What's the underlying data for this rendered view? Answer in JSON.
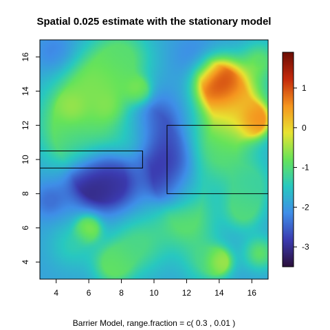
{
  "chart_data": {
    "type": "heatmap",
    "title": "Spatial 0.025 estimate with the stationary model",
    "caption": "Barrier Model, range.fraction = c( 0.3 ,  0.01 )",
    "xlabel": "",
    "ylabel": "",
    "xlim": [
      3,
      17
    ],
    "ylim": [
      3,
      17
    ],
    "x_ticks": [
      4,
      6,
      8,
      10,
      12,
      14,
      16
    ],
    "y_ticks": [
      4,
      6,
      8,
      10,
      12,
      14,
      16
    ],
    "colorbar": {
      "range": [
        -3.5,
        1.9
      ],
      "ticks": [
        1,
        0,
        -1,
        -2,
        -3
      ],
      "colors": [
        "#2b0f3a",
        "#3b3bb0",
        "#3f8ee8",
        "#28c8c0",
        "#66e35a",
        "#e8e332",
        "#f5951f",
        "#c42a0c",
        "#6b0d04"
      ]
    },
    "background_level": -1.9,
    "field_features": [
      {
        "x": 14.0,
        "y": 14.5,
        "value": 1.6,
        "spread": 0.9
      },
      {
        "x": 16.2,
        "y": 12.3,
        "value": 0.9,
        "spread": 0.6
      },
      {
        "x": 15.0,
        "y": 13.2,
        "value": 0.2,
        "spread": 1.3
      },
      {
        "x": 6.2,
        "y": 8.9,
        "value": -3.3,
        "spread": 1.0
      },
      {
        "x": 7.5,
        "y": 8.5,
        "value": -2.9,
        "spread": 1.2
      },
      {
        "x": 10.9,
        "y": 10.0,
        "value": -3.0,
        "spread": 1.0
      },
      {
        "x": 10.0,
        "y": 12.0,
        "value": -2.8,
        "spread": 1.2
      },
      {
        "x": 10.9,
        "y": 8.5,
        "value": -2.9,
        "spread": 0.8
      },
      {
        "x": 3.6,
        "y": 7.6,
        "value": -2.4,
        "spread": 0.8
      },
      {
        "x": 4.0,
        "y": 16.2,
        "value": -2.3,
        "spread": 0.9
      },
      {
        "x": 12.5,
        "y": 16.0,
        "value": -2.2,
        "spread": 1.0
      },
      {
        "x": 5.0,
        "y": 12.0,
        "value": -0.8,
        "spread": 1.6
      },
      {
        "x": 6.5,
        "y": 14.0,
        "value": -0.6,
        "spread": 1.5
      },
      {
        "x": 8.0,
        "y": 16.0,
        "value": -1.0,
        "spread": 1.3
      },
      {
        "x": 5.0,
        "y": 13.0,
        "value": -0.3,
        "spread": 0.5
      },
      {
        "x": 7.2,
        "y": 13.0,
        "value": -0.5,
        "spread": 0.5
      },
      {
        "x": 9.0,
        "y": 14.0,
        "value": -0.4,
        "spread": 0.5
      },
      {
        "x": 14.0,
        "y": 10.5,
        "value": -1.0,
        "spread": 1.5
      },
      {
        "x": 8.5,
        "y": 11.5,
        "value": -1.2,
        "spread": 1.0
      },
      {
        "x": 9.0,
        "y": 5.0,
        "value": -1.1,
        "spread": 1.3
      },
      {
        "x": 12.0,
        "y": 6.5,
        "value": -0.9,
        "spread": 1.2
      },
      {
        "x": 16.0,
        "y": 8.5,
        "value": -1.3,
        "spread": 1.0
      },
      {
        "x": 5.0,
        "y": 5.0,
        "value": -1.4,
        "spread": 1.0
      },
      {
        "x": 6.0,
        "y": 6.0,
        "value": -0.3,
        "spread": 0.5
      },
      {
        "x": 7.5,
        "y": 3.8,
        "value": -0.8,
        "spread": 0.8
      },
      {
        "x": 13.2,
        "y": 4.0,
        "value": -1.2,
        "spread": 1.0
      },
      {
        "x": 14.0,
        "y": 4.0,
        "value": -0.1,
        "spread": 0.5
      },
      {
        "x": 16.5,
        "y": 4.5,
        "value": -0.9,
        "spread": 0.7
      },
      {
        "x": 15.5,
        "y": 7.0,
        "value": -1.0,
        "spread": 0.8
      },
      {
        "x": 12.0,
        "y": 8.2,
        "value": -1.7,
        "spread": 0.8
      },
      {
        "x": 5.5,
        "y": 10.8,
        "value": -1.3,
        "spread": 1.0
      },
      {
        "x": 16.5,
        "y": 15.8,
        "value": -1.0,
        "spread": 0.8
      }
    ],
    "barriers": [
      {
        "x": [
          3.0,
          9.3
        ],
        "y": [
          9.5,
          10.5
        ]
      },
      {
        "x": [
          10.8,
          17.0
        ],
        "y": [
          8.0,
          12.0
        ]
      }
    ]
  }
}
